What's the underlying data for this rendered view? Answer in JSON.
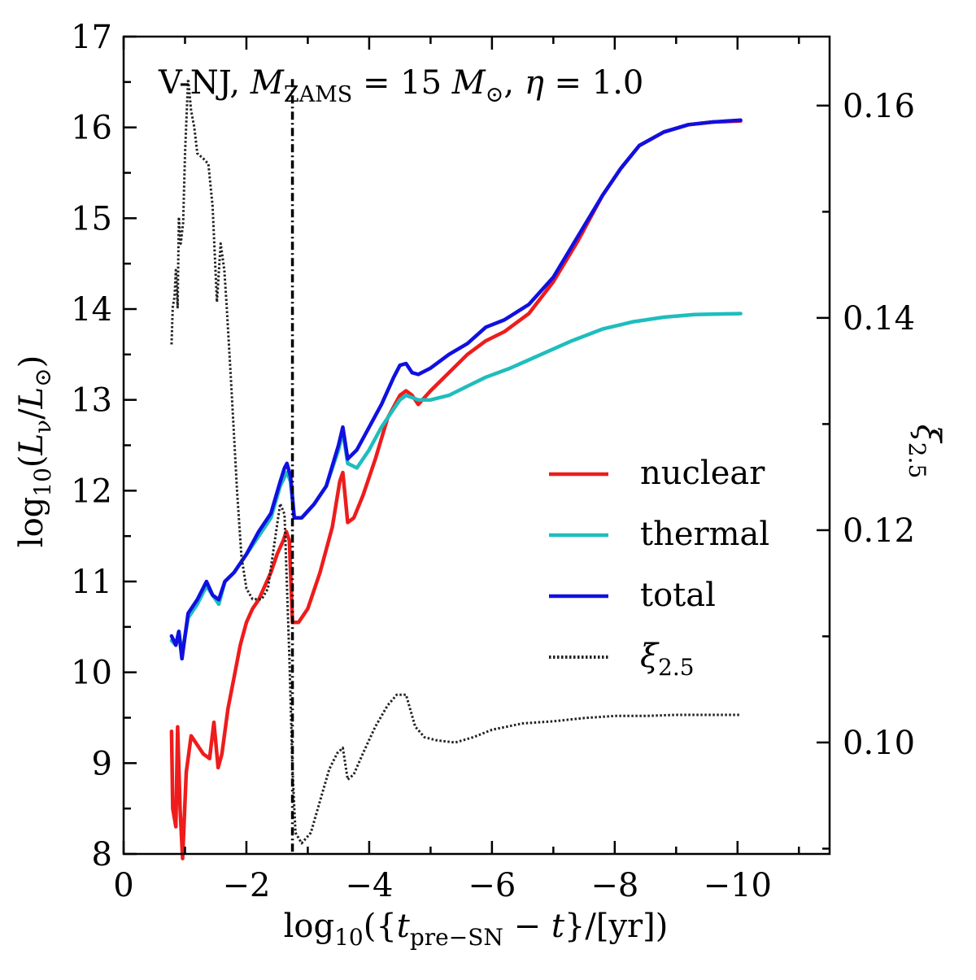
{
  "chart_data": {
    "type": "line",
    "title": {
      "prefix": "V-NJ, ",
      "m_symbol": "M",
      "m_sub": "ZAMS",
      "equals1": " = 15 ",
      "msun_symbol": "M",
      "msun_sub": "⊙",
      "comma": ", ",
      "eta": "η",
      "equals2": " = 1.0"
    },
    "xlabel": {
      "log": "log",
      "log_sub": "10",
      "open": "({",
      "t": "t",
      "t_sub": "pre−SN",
      "minus": " − ",
      "t2": "t",
      "close": "}/[yr])"
    },
    "ylabel": {
      "log": "log",
      "log_sub": "10",
      "open": "(",
      "L": "L",
      "L_sub": "ν",
      "slash": "/",
      "Lsun": "L",
      "Lsun_sub": "⊙",
      "close": ")"
    },
    "y2label": {
      "xi": "ξ",
      "xi_sub": "2.5"
    },
    "xlim": [
      0,
      -11.5
    ],
    "ylim": [
      8,
      17
    ],
    "y2lim": [
      0.0895,
      0.1665
    ],
    "xticks": [
      0,
      -2,
      -4,
      -6,
      -8,
      -10
    ],
    "xtick_labels": [
      "0",
      "−2",
      "−4",
      "−6",
      "−8",
      "−10"
    ],
    "yticks": [
      8,
      9,
      10,
      11,
      12,
      13,
      14,
      15,
      16,
      17
    ],
    "ytick_labels": [
      "8",
      "9",
      "10",
      "11",
      "12",
      "13",
      "14",
      "15",
      "16",
      "17"
    ],
    "y2ticks": [
      0.1,
      0.12,
      0.14,
      0.16
    ],
    "y2tick_labels": [
      "0.10",
      "0.12",
      "0.14",
      "0.16"
    ],
    "legend_position": "right",
    "series": [
      {
        "name": "nuclear",
        "color": "#ee1c1c",
        "axis": "left",
        "style": "solid",
        "points": [
          [
            -0.78,
            9.35
          ],
          [
            -0.8,
            8.5
          ],
          [
            -0.85,
            8.3
          ],
          [
            -0.88,
            9.4
          ],
          [
            -0.92,
            8.5
          ],
          [
            -0.96,
            7.95
          ],
          [
            -1.02,
            8.9
          ],
          [
            -1.1,
            9.3
          ],
          [
            -1.2,
            9.2
          ],
          [
            -1.3,
            9.1
          ],
          [
            -1.4,
            9.05
          ],
          [
            -1.47,
            9.45
          ],
          [
            -1.54,
            8.95
          ],
          [
            -1.6,
            9.1
          ],
          [
            -1.7,
            9.6
          ],
          [
            -1.8,
            9.95
          ],
          [
            -1.9,
            10.3
          ],
          [
            -2.0,
            10.55
          ],
          [
            -2.1,
            10.7
          ],
          [
            -2.2,
            10.8
          ],
          [
            -2.3,
            10.95
          ],
          [
            -2.4,
            11.1
          ],
          [
            -2.5,
            11.3
          ],
          [
            -2.6,
            11.45
          ],
          [
            -2.65,
            11.55
          ],
          [
            -2.7,
            11.45
          ],
          [
            -2.75,
            10.55
          ],
          [
            -2.85,
            10.55
          ],
          [
            -3.0,
            10.7
          ],
          [
            -3.2,
            11.1
          ],
          [
            -3.4,
            11.6
          ],
          [
            -3.52,
            12.1
          ],
          [
            -3.57,
            12.2
          ],
          [
            -3.65,
            11.65
          ],
          [
            -3.75,
            11.7
          ],
          [
            -3.9,
            11.95
          ],
          [
            -4.1,
            12.35
          ],
          [
            -4.3,
            12.8
          ],
          [
            -4.5,
            13.05
          ],
          [
            -4.6,
            13.1
          ],
          [
            -4.7,
            13.05
          ],
          [
            -4.8,
            12.95
          ],
          [
            -5.0,
            13.1
          ],
          [
            -5.3,
            13.3
          ],
          [
            -5.6,
            13.5
          ],
          [
            -5.9,
            13.65
          ],
          [
            -6.2,
            13.75
          ],
          [
            -6.6,
            13.95
          ],
          [
            -7.0,
            14.3
          ],
          [
            -7.4,
            14.75
          ],
          [
            -7.8,
            15.25
          ],
          [
            -8.1,
            15.55
          ],
          [
            -8.4,
            15.8
          ],
          [
            -8.8,
            15.95
          ],
          [
            -9.2,
            16.03
          ],
          [
            -9.6,
            16.06
          ],
          [
            -10.05,
            16.07
          ]
        ]
      },
      {
        "name": "thermal",
        "color": "#1fbdbd",
        "axis": "left",
        "style": "solid",
        "points": [
          [
            -0.78,
            10.35
          ],
          [
            -0.85,
            10.3
          ],
          [
            -0.9,
            10.45
          ],
          [
            -0.95,
            10.2
          ],
          [
            -1.05,
            10.6
          ],
          [
            -1.2,
            10.75
          ],
          [
            -1.35,
            10.95
          ],
          [
            -1.45,
            10.85
          ],
          [
            -1.55,
            10.75
          ],
          [
            -1.65,
            11.0
          ],
          [
            -1.8,
            11.1
          ],
          [
            -2.0,
            11.3
          ],
          [
            -2.2,
            11.5
          ],
          [
            -2.4,
            11.7
          ],
          [
            -2.55,
            12.05
          ],
          [
            -2.62,
            12.15
          ],
          [
            -2.66,
            12.2
          ],
          [
            -2.72,
            12.1
          ],
          [
            -2.78,
            11.7
          ],
          [
            -2.9,
            11.7
          ],
          [
            -3.1,
            11.85
          ],
          [
            -3.3,
            12.05
          ],
          [
            -3.5,
            12.45
          ],
          [
            -3.57,
            12.65
          ],
          [
            -3.65,
            12.3
          ],
          [
            -3.8,
            12.25
          ],
          [
            -4.0,
            12.45
          ],
          [
            -4.2,
            12.7
          ],
          [
            -4.4,
            12.9
          ],
          [
            -4.5,
            13.0
          ],
          [
            -4.6,
            13.05
          ],
          [
            -4.8,
            13.0
          ],
          [
            -5.0,
            13.0
          ],
          [
            -5.3,
            13.05
          ],
          [
            -5.6,
            13.15
          ],
          [
            -5.9,
            13.25
          ],
          [
            -6.3,
            13.35
          ],
          [
            -6.8,
            13.5
          ],
          [
            -7.3,
            13.65
          ],
          [
            -7.8,
            13.78
          ],
          [
            -8.3,
            13.86
          ],
          [
            -8.8,
            13.91
          ],
          [
            -9.3,
            13.94
          ],
          [
            -10.05,
            13.95
          ]
        ]
      },
      {
        "name": "total",
        "color": "#1010e0",
        "axis": "left",
        "style": "solid",
        "points": [
          [
            -0.78,
            10.4
          ],
          [
            -0.85,
            10.3
          ],
          [
            -0.9,
            10.45
          ],
          [
            -0.95,
            10.15
          ],
          [
            -1.05,
            10.65
          ],
          [
            -1.2,
            10.8
          ],
          [
            -1.35,
            11.0
          ],
          [
            -1.45,
            10.85
          ],
          [
            -1.55,
            10.8
          ],
          [
            -1.65,
            11.0
          ],
          [
            -1.8,
            11.1
          ],
          [
            -2.0,
            11.3
          ],
          [
            -2.2,
            11.55
          ],
          [
            -2.4,
            11.75
          ],
          [
            -2.55,
            12.1
          ],
          [
            -2.62,
            12.25
          ],
          [
            -2.66,
            12.3
          ],
          [
            -2.72,
            12.15
          ],
          [
            -2.78,
            11.7
          ],
          [
            -2.9,
            11.7
          ],
          [
            -3.1,
            11.85
          ],
          [
            -3.3,
            12.05
          ],
          [
            -3.5,
            12.5
          ],
          [
            -3.57,
            12.7
          ],
          [
            -3.65,
            12.35
          ],
          [
            -3.8,
            12.45
          ],
          [
            -4.0,
            12.7
          ],
          [
            -4.2,
            12.95
          ],
          [
            -4.4,
            13.25
          ],
          [
            -4.5,
            13.38
          ],
          [
            -4.6,
            13.4
          ],
          [
            -4.7,
            13.3
          ],
          [
            -4.8,
            13.28
          ],
          [
            -5.0,
            13.35
          ],
          [
            -5.3,
            13.5
          ],
          [
            -5.6,
            13.62
          ],
          [
            -5.9,
            13.8
          ],
          [
            -6.2,
            13.88
          ],
          [
            -6.6,
            14.05
          ],
          [
            -7.0,
            14.35
          ],
          [
            -7.4,
            14.8
          ],
          [
            -7.8,
            15.25
          ],
          [
            -8.1,
            15.55
          ],
          [
            -8.4,
            15.8
          ],
          [
            -8.8,
            15.95
          ],
          [
            -9.2,
            16.03
          ],
          [
            -9.6,
            16.06
          ],
          [
            -10.05,
            16.08
          ]
        ]
      },
      {
        "name": "ξ2.5",
        "color": "#222222",
        "axis": "right",
        "style": "dotted",
        "points": [
          [
            -0.78,
            0.1375
          ],
          [
            -0.8,
            0.141
          ],
          [
            -0.83,
            0.142
          ],
          [
            -0.85,
            0.1445
          ],
          [
            -0.88,
            0.141
          ],
          [
            -0.9,
            0.1495
          ],
          [
            -0.93,
            0.147
          ],
          [
            -0.97,
            0.149
          ],
          [
            -1.0,
            0.1555
          ],
          [
            -1.05,
            0.1625
          ],
          [
            -1.1,
            0.1595
          ],
          [
            -1.15,
            0.158
          ],
          [
            -1.2,
            0.1555
          ],
          [
            -1.3,
            0.155
          ],
          [
            -1.38,
            0.1545
          ],
          [
            -1.45,
            0.1505
          ],
          [
            -1.52,
            0.1415
          ],
          [
            -1.58,
            0.147
          ],
          [
            -1.64,
            0.1445
          ],
          [
            -1.68,
            0.141
          ],
          [
            -1.75,
            0.134
          ],
          [
            -1.85,
            0.1235
          ],
          [
            -1.92,
            0.1175
          ],
          [
            -2.0,
            0.1145
          ],
          [
            -2.1,
            0.1135
          ],
          [
            -2.25,
            0.1135
          ],
          [
            -2.35,
            0.1145
          ],
          [
            -2.45,
            0.1185
          ],
          [
            -2.55,
            0.1225
          ],
          [
            -2.62,
            0.1215
          ],
          [
            -2.7,
            0.108
          ],
          [
            -2.75,
            0.0975
          ],
          [
            -2.8,
            0.0915
          ],
          [
            -2.9,
            0.0905
          ],
          [
            -3.05,
            0.0915
          ],
          [
            -3.2,
            0.0945
          ],
          [
            -3.35,
            0.0975
          ],
          [
            -3.48,
            0.099
          ],
          [
            -3.57,
            0.0995
          ],
          [
            -3.65,
            0.0965
          ],
          [
            -3.75,
            0.097
          ],
          [
            -3.9,
            0.099
          ],
          [
            -4.1,
            0.1015
          ],
          [
            -4.3,
            0.1035
          ],
          [
            -4.45,
            0.1045
          ],
          [
            -4.6,
            0.1045
          ],
          [
            -4.75,
            0.1015
          ],
          [
            -4.9,
            0.1005
          ],
          [
            -5.1,
            0.1002
          ],
          [
            -5.4,
            0.1
          ],
          [
            -5.7,
            0.1005
          ],
          [
            -6.0,
            0.1012
          ],
          [
            -6.5,
            0.1018
          ],
          [
            -7.0,
            0.102
          ],
          [
            -7.5,
            0.1023
          ],
          [
            -8.0,
            0.1025
          ],
          [
            -8.5,
            0.1025
          ],
          [
            -9.0,
            0.1026
          ],
          [
            -10.05,
            0.1026
          ]
        ]
      }
    ],
    "vertical_line": {
      "x": -2.75,
      "style": "dash-dot",
      "color": "#000000"
    }
  }
}
